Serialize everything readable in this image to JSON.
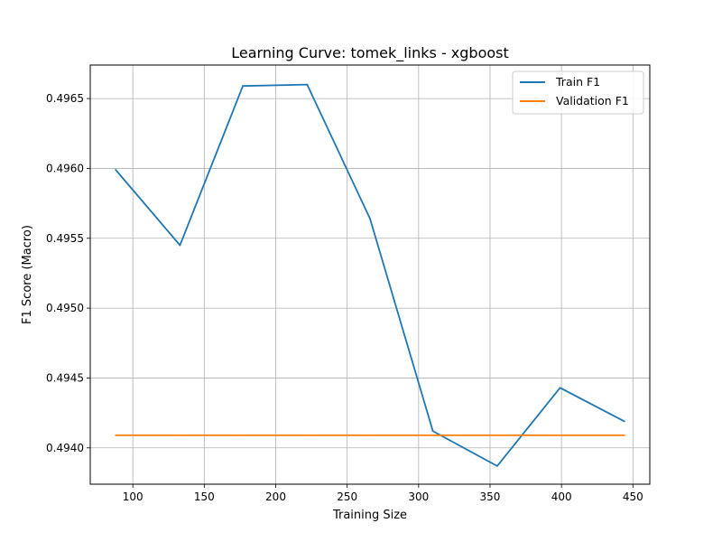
{
  "chart_data": {
    "type": "line",
    "title": "Learning Curve: tomek_links - xgboost",
    "xlabel": "Training Size",
    "ylabel": "F1 Score (Macro)",
    "x": [
      88,
      133,
      177,
      222,
      266,
      310,
      355,
      399,
      444
    ],
    "series": [
      {
        "name": "Train F1",
        "color": "#1f77b4",
        "values": [
          0.49599,
          0.49545,
          0.49659,
          0.4966,
          0.49564,
          0.49412,
          0.49387,
          0.49443,
          0.49419
        ]
      },
      {
        "name": "Validation F1",
        "color": "#ff7f0e",
        "values": [
          0.49409,
          0.49409,
          0.49409,
          0.49409,
          0.49409,
          0.49409,
          0.49409,
          0.49409,
          0.49409
        ]
      }
    ],
    "xlim": [
      70.2,
      461.8
    ],
    "ylim": [
      0.49374,
      0.49674
    ],
    "xticks": [
      100,
      150,
      200,
      250,
      300,
      350,
      400,
      450
    ],
    "xtick_labels": [
      "100",
      "150",
      "200",
      "250",
      "300",
      "350",
      "400",
      "450"
    ],
    "yticks": [
      0.494,
      0.4945,
      0.495,
      0.4955,
      0.496,
      0.4965
    ],
    "ytick_labels": [
      "0.4940",
      "0.4945",
      "0.4950",
      "0.4955",
      "0.4960",
      "0.4965"
    ],
    "grid": true,
    "legend_position": "top-right"
  }
}
